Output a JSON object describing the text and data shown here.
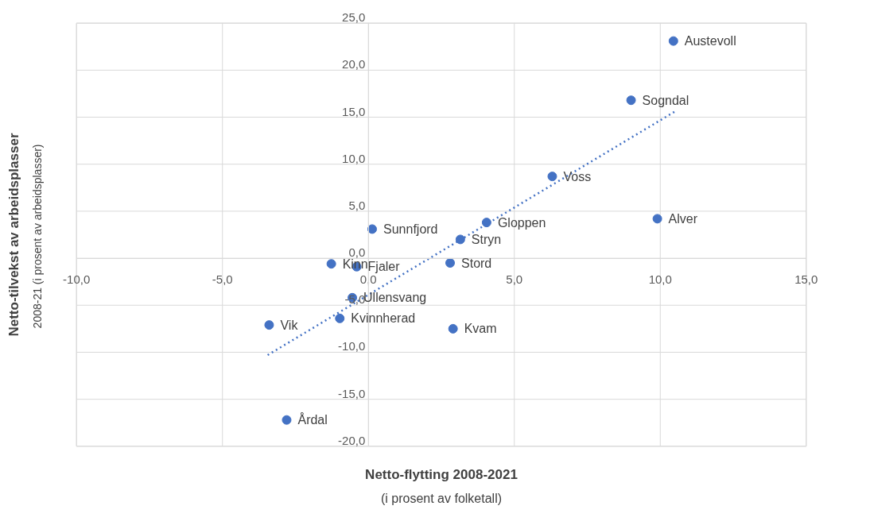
{
  "chart_data": {
    "type": "scatter",
    "xlabel": "Netto-flytting 2008-2021",
    "ylabel": "Netto-tilvekst av arbeidsplasser",
    "xlim": [
      -10,
      15
    ],
    "ylim": [
      -20,
      25
    ],
    "xticks": [
      {
        "value": -10,
        "label": "-10,0"
      },
      {
        "value": -5,
        "label": "-5,0"
      },
      {
        "value": 0,
        "label": "0,0"
      },
      {
        "value": 5,
        "label": "5,0"
      },
      {
        "value": 10,
        "label": "10,0"
      },
      {
        "value": 15,
        "label": "15,0"
      }
    ],
    "yticks": [
      {
        "value": -20,
        "label": "-20,0"
      },
      {
        "value": -15,
        "label": "-15,0"
      },
      {
        "value": -10,
        "label": "-10,0"
      },
      {
        "value": -5,
        "label": "-5,0"
      },
      {
        "value": 0,
        "label": "0,0"
      },
      {
        "value": 5,
        "label": "5,0"
      },
      {
        "value": 10,
        "label": "10,0"
      },
      {
        "value": 15,
        "label": "15,0"
      },
      {
        "value": 20,
        "label": "20,0"
      },
      {
        "value": 25,
        "label": "25,0"
      }
    ],
    "grid": true,
    "marker": "circle",
    "series": [
      {
        "color": "#4472c4",
        "x": [
          10.45,
          9.0,
          6.3,
          9.9,
          4.05,
          0.13,
          3.15,
          2.8,
          -1.27,
          -0.4,
          -0.55,
          -0.98,
          2.9,
          -3.4,
          -2.8
        ],
        "values": [
          23.1,
          16.8,
          8.7,
          4.2,
          3.8,
          3.1,
          2.0,
          -0.5,
          -0.6,
          -0.9,
          -4.2,
          -6.4,
          -7.5,
          -7.1,
          -17.2
        ]
      },
      {
        "type": "line",
        "color": "#4472c4",
        "line_style": "dotted",
        "marker": "none",
        "x": [
          -3.45,
          10.5
        ],
        "values": [
          -10.3,
          15.6
        ]
      }
    ],
    "annotations": [
      "(i prosent av folketall)",
      "2008-21  (i prosent av arbeidsplasser)",
      {
        "text": "Austevoll",
        "x": 10.45,
        "y": 23.1
      },
      {
        "text": "Sogndal",
        "x": 9.0,
        "y": 16.8
      },
      {
        "text": "Voss",
        "x": 6.3,
        "y": 8.7
      },
      {
        "text": "Alver",
        "x": 9.9,
        "y": 4.2
      },
      {
        "text": "Gloppen",
        "x": 4.05,
        "y": 3.8
      },
      {
        "text": "Sunnfjord",
        "x": 0.13,
        "y": 3.1
      },
      {
        "text": "Stryn",
        "x": 3.15,
        "y": 2.0
      },
      {
        "text": "Stord",
        "x": 2.8,
        "y": -0.5
      },
      {
        "text": "Kinn",
        "x": -1.27,
        "y": -0.6
      },
      {
        "text": "Fjaler",
        "x": -0.4,
        "y": -0.9
      },
      {
        "text": "Ullensvang",
        "x": -0.55,
        "y": -4.2
      },
      {
        "text": "Kvinnherad",
        "x": -0.98,
        "y": -6.4
      },
      {
        "text": "Kvam",
        "x": 2.9,
        "y": -7.5
      },
      {
        "text": "Vik",
        "x": -3.4,
        "y": -7.1
      },
      {
        "text": "Årdal",
        "x": -2.8,
        "y": -17.2
      }
    ]
  }
}
